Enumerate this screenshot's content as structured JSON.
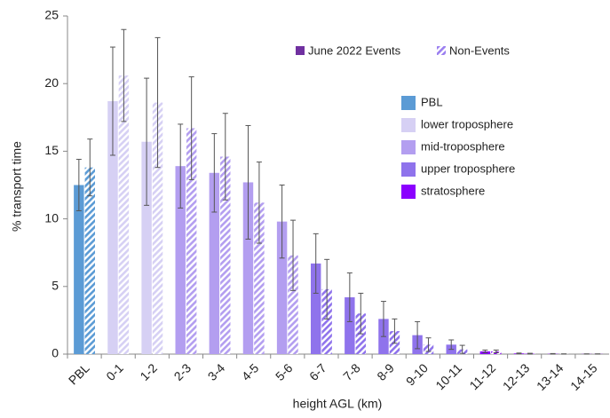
{
  "chart_data": {
    "type": "bar",
    "x_label": "height AGL (km)",
    "y_label": "% transport time",
    "categories": [
      "PBL",
      "0-1",
      "1-2",
      "2-3",
      "3-4",
      "4-5",
      "5-6",
      "6-7",
      "7-8",
      "8-9",
      "9-10",
      "10-11",
      "11-12",
      "12-13",
      "13-14",
      "14-15"
    ],
    "category_colors": [
      "#5b9bd5",
      "#d6d0f4",
      "#d6d0f4",
      "#b39ef0",
      "#b39ef0",
      "#b39ef0",
      "#b39ef0",
      "#8f73ec",
      "#8f73ec",
      "#8f73ec",
      "#8f73ec",
      "#8f73ec",
      "#8b00ff",
      "#8b00ff",
      "#8b00ff",
      "#8b00ff"
    ],
    "series": [
      {
        "name": "June 2022 Events",
        "color": "#7030a0",
        "pattern": "solid",
        "values": [
          12.5,
          18.7,
          15.7,
          13.9,
          13.4,
          12.7,
          9.8,
          6.7,
          4.2,
          2.6,
          1.4,
          0.7,
          0.2,
          0.05,
          0.02,
          0.01
        ],
        "errors": [
          1.9,
          4.0,
          4.7,
          3.1,
          2.9,
          4.2,
          2.7,
          2.2,
          1.8,
          1.3,
          1.0,
          0.35,
          0.1,
          0.03,
          0.02,
          0.01
        ]
      },
      {
        "name": "Non-Events",
        "color": "#9b7ff0",
        "pattern": "hatch",
        "values": [
          13.8,
          20.6,
          18.6,
          16.7,
          14.6,
          11.2,
          7.3,
          4.8,
          3.0,
          1.7,
          0.7,
          0.35,
          0.2,
          0.03,
          0.01,
          0.01
        ],
        "errors": [
          2.1,
          3.4,
          4.8,
          3.8,
          3.2,
          3.0,
          2.6,
          2.2,
          1.5,
          0.9,
          0.5,
          0.3,
          0.1,
          0.03,
          0.01,
          0.01
        ]
      }
    ],
    "layers": [
      {
        "name": "PBL",
        "color": "#5b9bd5"
      },
      {
        "name": "lower troposphere",
        "color": "#d6d0f4"
      },
      {
        "name": "mid-troposphere",
        "color": "#b39ef0"
      },
      {
        "name": "upper troposphere",
        "color": "#8f73ec"
      },
      {
        "name": "stratosphere",
        "color": "#8b00ff"
      }
    ],
    "ylim": [
      0,
      25
    ],
    "yticks": [
      0,
      5,
      10,
      15,
      20,
      25
    ],
    "grid": false
  }
}
